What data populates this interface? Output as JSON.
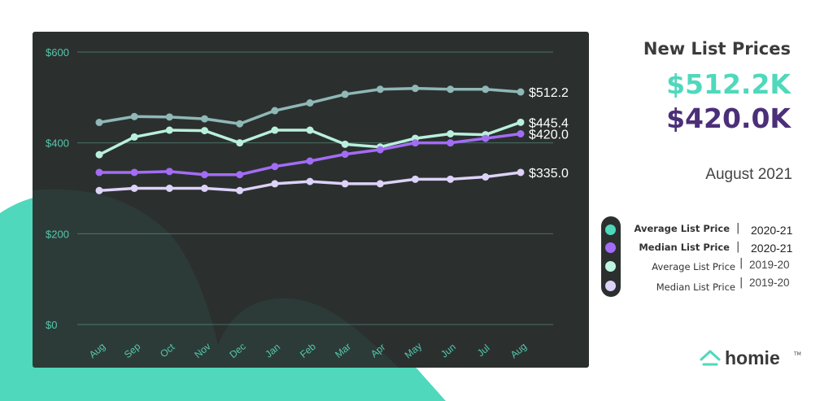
{
  "headline": {
    "title": "New List Prices",
    "avg_value": "$512.2K",
    "median_value": "$420.0K",
    "period": "August 2021"
  },
  "legend": {
    "items": [
      {
        "label": "Average List Price",
        "year": "2020-21",
        "color": "#4fd8bc",
        "bold": true
      },
      {
        "label": "Median List Price",
        "year": "2020-21",
        "color": "#a36cf5",
        "bold": true
      },
      {
        "label": "Average List Price",
        "year": "2019-20",
        "color": "#bff5e4",
        "bold": false
      },
      {
        "label": "Median List Price",
        "year": "2019-20",
        "color": "#ddd2f8",
        "bold": false
      }
    ],
    "separator": "|"
  },
  "brand": {
    "name": "homie",
    "tm": "TM",
    "icon": "house-icon"
  },
  "colors": {
    "panel": "#2b302f",
    "accent": "#4fd8bc",
    "grid": "#4b6e66",
    "tick_text": "#53c8ac",
    "end_label": "#ffffff"
  },
  "chart_data": {
    "type": "line",
    "categories": [
      "Aug",
      "Sep",
      "Oct",
      "Nov",
      "Dec",
      "Jan",
      "Feb",
      "Mar",
      "Apr",
      "May",
      "Jun",
      "Jul",
      "Aug"
    ],
    "yticks": [
      "$0",
      "$200",
      "$400",
      "$600"
    ],
    "ylim": [
      0,
      600
    ],
    "grid": true,
    "series": [
      {
        "name": "Average List Price 2020-21",
        "color": "#8fb8b6",
        "end_label": "$512.2",
        "values": [
          445,
          458,
          457,
          453,
          442,
          471,
          488,
          507,
          518,
          520,
          518,
          518,
          512.2
        ]
      },
      {
        "name": "Average List Price 2019-20",
        "color": "#b9f0dc",
        "end_label": "$445.4",
        "values": [
          374,
          413,
          428,
          427,
          400,
          428,
          428,
          397,
          391,
          410,
          420,
          418,
          445.4
        ]
      },
      {
        "name": "Median List Price 2020-21",
        "color": "#a36cf5",
        "end_label": "$420.0",
        "values": [
          335,
          335,
          337,
          330,
          330,
          348,
          360,
          375,
          385,
          400,
          400,
          410,
          420
        ]
      },
      {
        "name": "Median List Price 2019-20",
        "color": "#ddd2f8",
        "end_label": "$335.0",
        "values": [
          295,
          300,
          300,
          300,
          295,
          310,
          315,
          310,
          310,
          320,
          320,
          325,
          335
        ]
      }
    ]
  }
}
